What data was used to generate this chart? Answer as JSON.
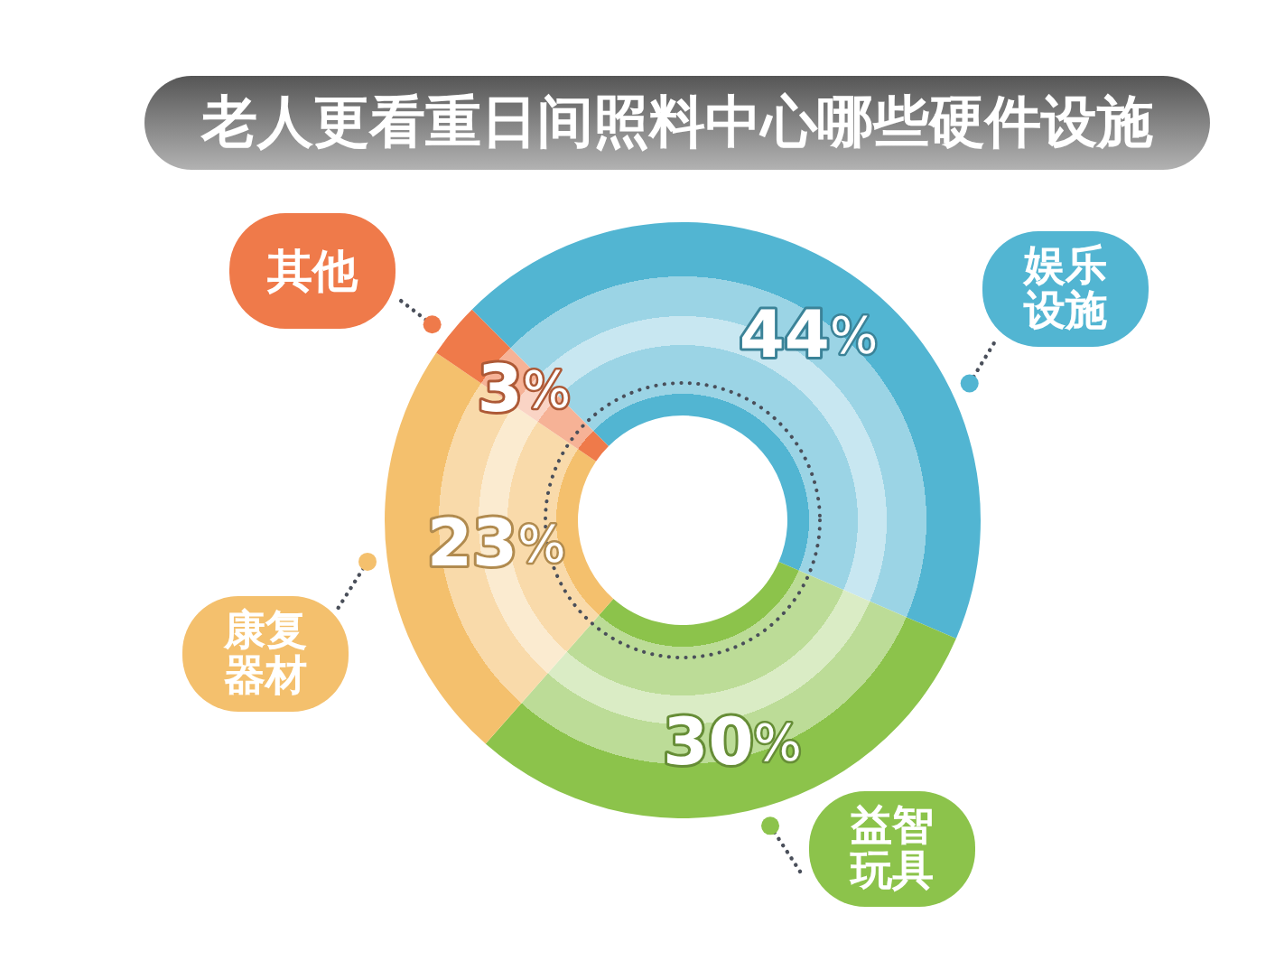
{
  "chart_data": {
    "type": "donut",
    "title": "老人更看重日间照料中心哪些硬件设施",
    "categories": [
      "娱乐设施",
      "益智玩具",
      "康复器材",
      "其他"
    ],
    "values": [
      44,
      30,
      23,
      3
    ],
    "colors": [
      "#52b5d2",
      "#8cc34b",
      "#f4c06d",
      "#ef7a4a"
    ],
    "value_labels": [
      "44%",
      "30%",
      "23%",
      "3%"
    ]
  }
}
